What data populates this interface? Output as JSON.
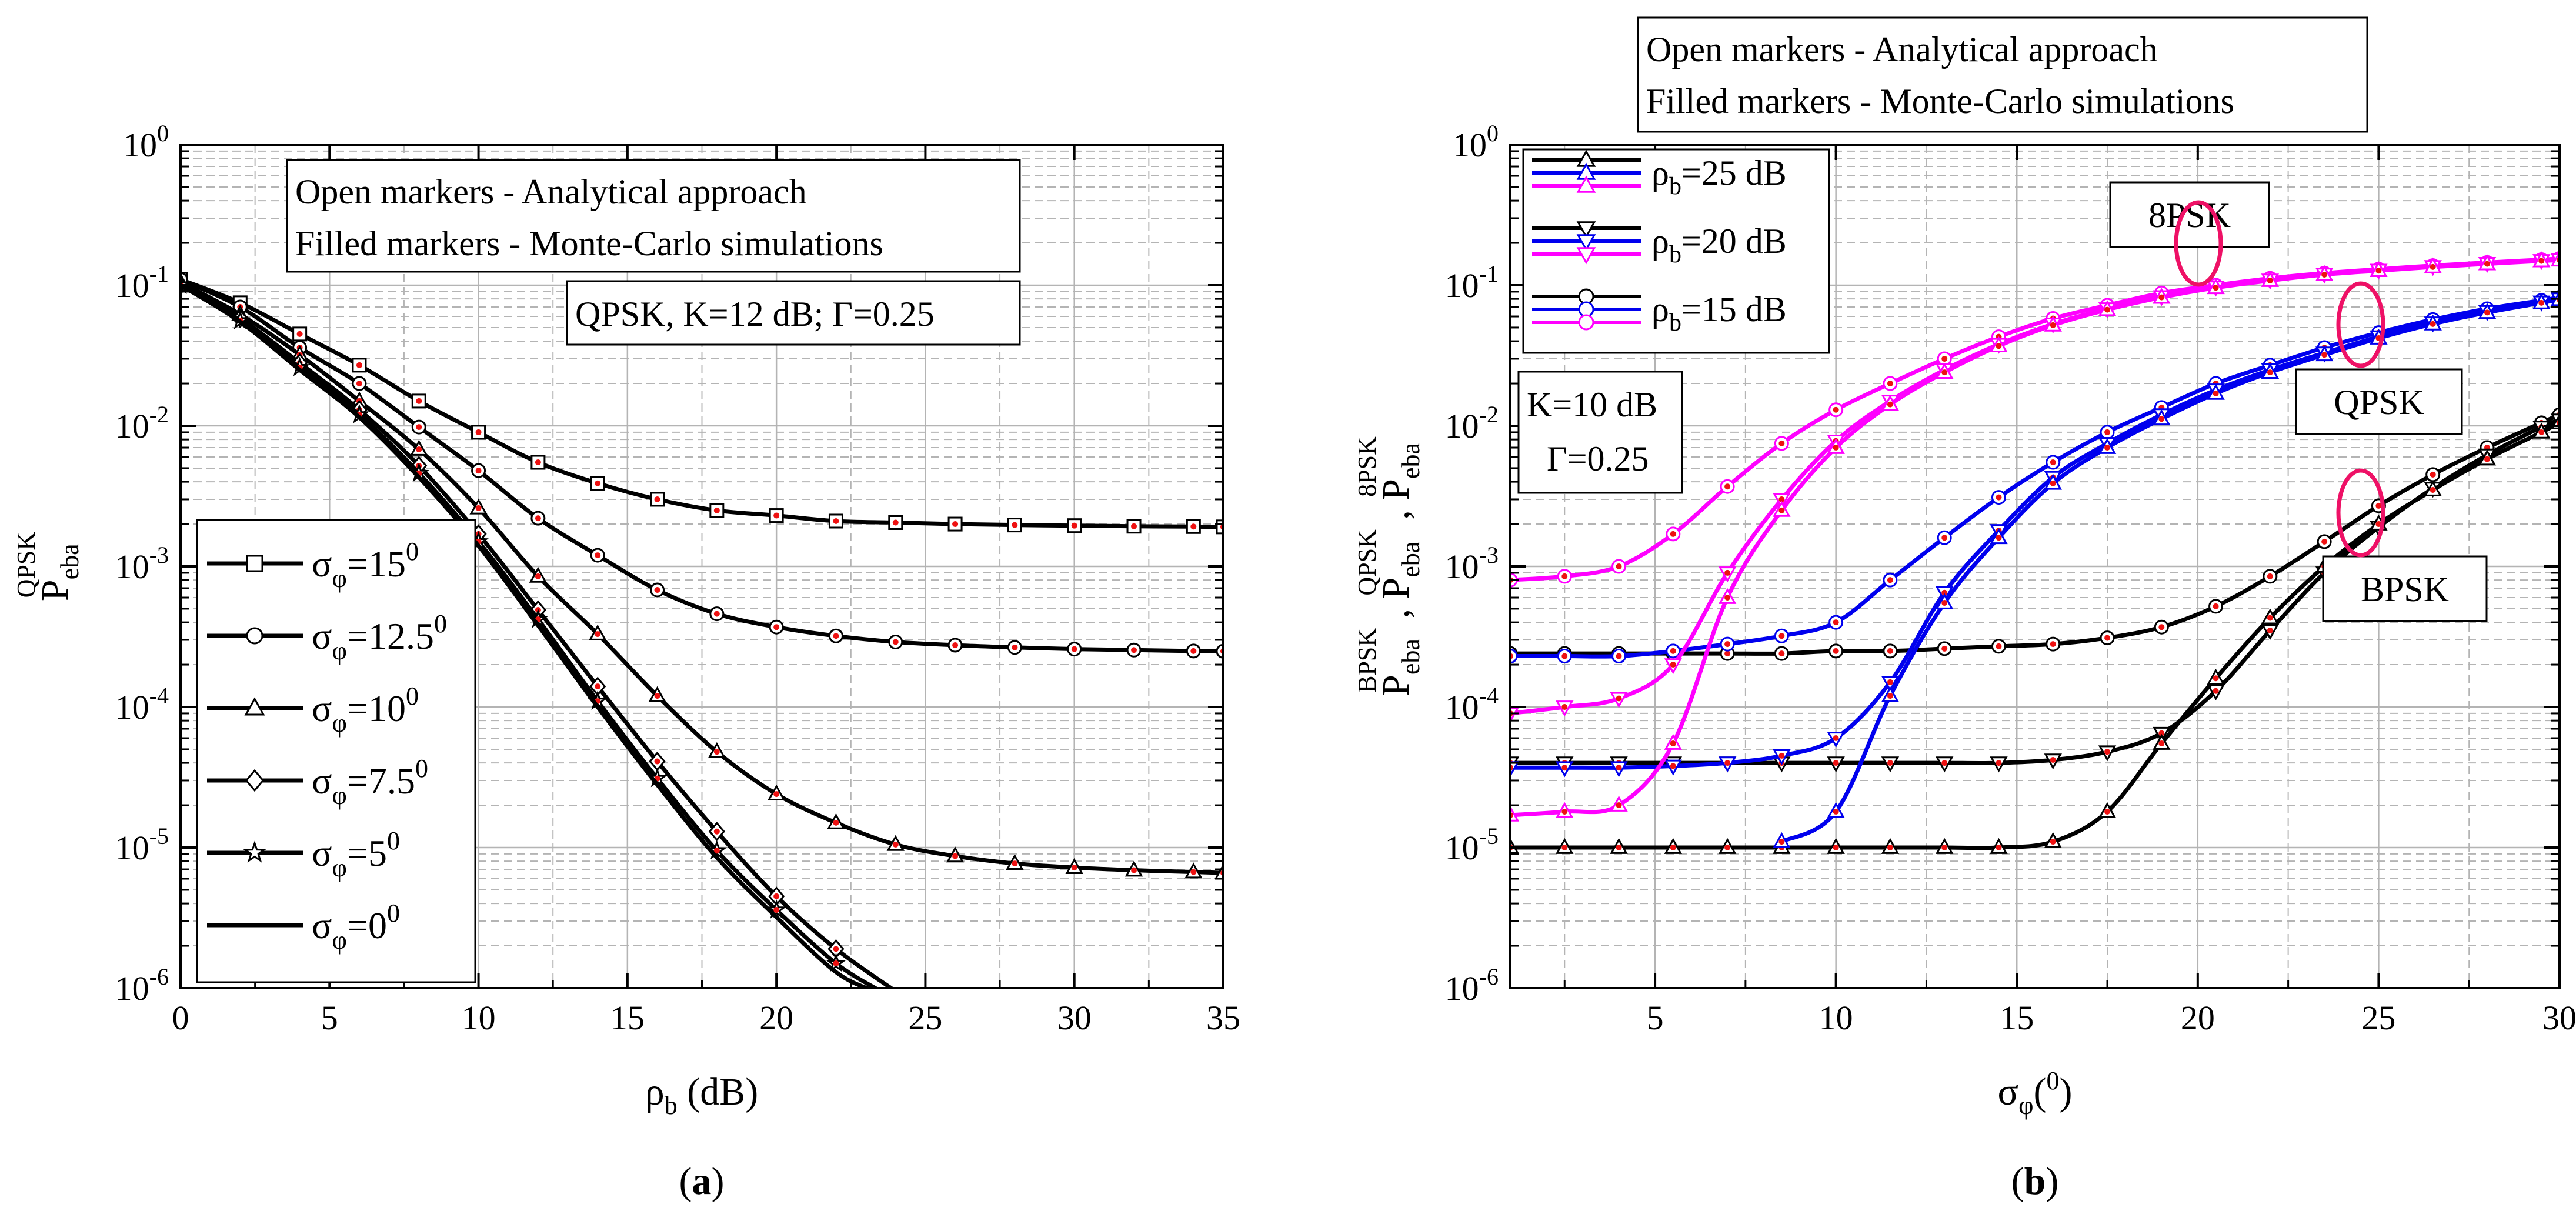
{
  "colors": {
    "black": "#000000",
    "blue": "#0000ee",
    "magenta": "#ff00ff",
    "red_fill": "#ee1111",
    "grid": "#b4b4b4"
  },
  "panel_a": {
    "caption": "a",
    "notes": [
      "Open markers - Analytical approach",
      "Filled markers - Monte-Carlo simulations"
    ],
    "params": "QPSK, K=12 dB; Γ=0.25"
  },
  "panel_b": {
    "caption": "b",
    "notes": [
      "Open markers - Analytical approach",
      "Filled markers - Monte-Carlo simulations"
    ],
    "params": [
      "K=10 dB",
      "Γ=0.25"
    ],
    "group_labels": [
      "8PSK",
      "QPSK",
      "BPSK"
    ]
  },
  "chart_data": [
    {
      "type": "line",
      "panel": "a",
      "xlabel": "ρb (dB)",
      "ylabel": "Peba QPSK",
      "xlim": [
        0,
        35
      ],
      "ylim": [
        1e-06,
        1
      ],
      "yscale": "log",
      "xticks": [
        0,
        5,
        10,
        15,
        20,
        25,
        30,
        35
      ],
      "yticks": [
        "10^0",
        "10^-1",
        "10^-2",
        "10^-3",
        "10^-4",
        "10^-5",
        "10^-6"
      ],
      "grid": true,
      "series": [
        {
          "name": "σφ=15⁰",
          "legend": [
            "σ",
            "φ",
            "=15",
            "0"
          ],
          "marker": "square",
          "color": "#000000",
          "x": [
            0,
            2,
            4,
            6,
            8,
            10,
            12,
            14,
            16,
            18,
            20,
            22,
            24,
            26,
            28,
            30,
            32,
            34,
            35
          ],
          "y": [
            0.11,
            0.075,
            0.045,
            0.027,
            0.015,
            0.009,
            0.0055,
            0.0039,
            0.003,
            0.0025,
            0.0023,
            0.0021,
            0.00205,
            0.002,
            0.00197,
            0.00195,
            0.00193,
            0.00192,
            0.00191
          ]
        },
        {
          "name": "σφ=12.5⁰",
          "legend": [
            "σ",
            "φ",
            "=12.5",
            "0"
          ],
          "marker": "circle",
          "color": "#000000",
          "x": [
            0,
            2,
            4,
            6,
            8,
            10,
            12,
            14,
            16,
            18,
            20,
            22,
            24,
            26,
            28,
            30,
            32,
            34,
            35
          ],
          "y": [
            0.11,
            0.07,
            0.036,
            0.02,
            0.0098,
            0.0048,
            0.0022,
            0.0012,
            0.00068,
            0.00046,
            0.00037,
            0.00032,
            0.00029,
            0.000275,
            0.000265,
            0.000258,
            0.000254,
            0.00025,
            0.000249
          ]
        },
        {
          "name": "σφ=10⁰",
          "legend": [
            "σ",
            "φ",
            "=10",
            "0"
          ],
          "marker": "triangle",
          "color": "#000000",
          "x": [
            0,
            2,
            4,
            6,
            8,
            10,
            12,
            14,
            16,
            18,
            20,
            22,
            24,
            26,
            28,
            30,
            32,
            34,
            35
          ],
          "y": [
            0.105,
            0.062,
            0.032,
            0.015,
            0.0068,
            0.0026,
            0.00085,
            0.00033,
            0.00012,
            4.8e-05,
            2.4e-05,
            1.5e-05,
            1.05e-05,
            8.7e-06,
            7.7e-06,
            7.2e-06,
            6.9e-06,
            6.7e-06,
            6.6e-06
          ]
        },
        {
          "name": "σφ=7.5⁰",
          "legend": [
            "σ",
            "φ",
            "=7.5",
            "0"
          ],
          "marker": "diamond",
          "color": "#000000",
          "x": [
            0,
            2,
            4,
            6,
            8,
            10,
            12,
            14,
            16,
            18,
            20,
            22,
            24
          ],
          "y": [
            0.1,
            0.058,
            0.028,
            0.013,
            0.0052,
            0.0017,
            0.00049,
            0.00014,
            4.1e-05,
            1.3e-05,
            4.5e-06,
            1.9e-06,
            9.5e-07
          ]
        },
        {
          "name": "σφ=5⁰",
          "legend": [
            "σ",
            "φ",
            "=5",
            "0"
          ],
          "marker": "star",
          "color": "#000000",
          "x": [
            0,
            2,
            4,
            6,
            8,
            10,
            12,
            14,
            16,
            18,
            20,
            22,
            23.5
          ],
          "y": [
            0.1,
            0.056,
            0.026,
            0.012,
            0.0046,
            0.0015,
            0.00042,
            0.00011,
            3.1e-05,
            9.5e-06,
            3.6e-06,
            1.5e-06,
            9.5e-07
          ]
        },
        {
          "name": "σφ=0⁰",
          "legend": [
            "σ",
            "φ",
            "=0",
            "0"
          ],
          "marker": "none",
          "color": "#000000",
          "x": [
            0,
            2,
            4,
            6,
            8,
            10,
            12,
            14,
            16,
            18,
            20,
            22,
            23.3
          ],
          "y": [
            0.1,
            0.055,
            0.025,
            0.0115,
            0.0043,
            0.0014,
            0.00038,
            0.0001,
            2.8e-05,
            8.5e-06,
            3.2e-06,
            1.3e-06,
            9.5e-07
          ]
        }
      ]
    },
    {
      "type": "line",
      "panel": "b",
      "xlabel": "σφ(⁰)",
      "ylabel": "Peba BPSK, Peba QPSK, Peba 8PSK",
      "xlim": [
        1,
        30
      ],
      "ylim": [
        1e-06,
        1
      ],
      "yscale": "log",
      "xticks": [
        5,
        10,
        15,
        20,
        25,
        30
      ],
      "yticks": [
        "10^0",
        "10^-1",
        "10^-2",
        "10^-3",
        "10^-4",
        "10^-5",
        "10^-6"
      ],
      "grid": true,
      "legend": [
        {
          "label": "ρb=25 dB",
          "sym": "ρ",
          "sub": "b",
          "rest": "=25 dB",
          "marker": "triangle"
        },
        {
          "label": "ρb=20 dB",
          "sym": "ρ",
          "sub": "b",
          "rest": "=20 dB",
          "marker": "triangle-down"
        },
        {
          "label": "ρb=15 dB",
          "sym": "ρ",
          "sub": "b",
          "rest": "=15 dB",
          "marker": "circle"
        }
      ],
      "series": [
        {
          "name": "BPSK ρb=15 dB",
          "color": "#000000",
          "marker": "circle",
          "x": [
            1,
            2.5,
            4,
            5.5,
            7,
            8.5,
            10,
            11.5,
            13,
            14.5,
            16,
            17.5,
            19,
            20.5,
            22,
            23.5,
            25,
            26.5,
            28,
            29.5,
            30
          ],
          "y": [
            0.00024,
            0.00024,
            0.00024,
            0.00024,
            0.00024,
            0.00024,
            0.00025,
            0.00025,
            0.00026,
            0.00027,
            0.00028,
            0.00031,
            0.00037,
            0.00052,
            0.00085,
            0.0015,
            0.0027,
            0.0045,
            0.007,
            0.0105,
            0.012
          ]
        },
        {
          "name": "BPSK ρb=20 dB",
          "color": "#000000",
          "marker": "triangle-down",
          "x": [
            1,
            2.5,
            4,
            5.5,
            7,
            8.5,
            10,
            11.5,
            13,
            14.5,
            16,
            17.5,
            19,
            20.5,
            22,
            23.5,
            25,
            26.5,
            28,
            29.5,
            30
          ],
          "y": [
            4e-05,
            4e-05,
            4e-05,
            4e-05,
            4e-05,
            4e-05,
            4e-05,
            4e-05,
            4e-05,
            4e-05,
            4.2e-05,
            4.8e-05,
            6.5e-05,
            0.00013,
            0.00035,
            0.0009,
            0.0019,
            0.0036,
            0.0062,
            0.0098,
            0.011
          ]
        },
        {
          "name": "BPSK ρb=25 dB",
          "color": "#000000",
          "marker": "triangle",
          "x": [
            1,
            2.5,
            4,
            5.5,
            7,
            8.5,
            10,
            11.5,
            13,
            14.5,
            16,
            17.5,
            19,
            20.5,
            22,
            23.5,
            25,
            26.5,
            28,
            29.5,
            30
          ],
          "y": [
            1e-05,
            1e-05,
            1e-05,
            1e-05,
            1e-05,
            1e-05,
            1e-05,
            1e-05,
            1e-05,
            1e-05,
            1.1e-05,
            1.8e-05,
            5.5e-05,
            0.00016,
            0.00043,
            0.001,
            0.002,
            0.0035,
            0.0058,
            0.009,
            0.0105
          ]
        },
        {
          "name": "QPSK ρb=15 dB",
          "color": "#0000ee",
          "marker": "circle",
          "x": [
            1,
            2.5,
            4,
            5.5,
            7,
            8.5,
            10,
            11.5,
            13,
            14.5,
            16,
            17.5,
            19,
            20.5,
            22,
            23.5,
            25,
            26.5,
            28,
            29.5,
            30
          ],
          "y": [
            0.00023,
            0.00023,
            0.00023,
            0.00025,
            0.00028,
            0.00032,
            0.0004,
            0.0008,
            0.0016,
            0.0031,
            0.0055,
            0.009,
            0.0135,
            0.02,
            0.027,
            0.036,
            0.046,
            0.057,
            0.068,
            0.078,
            0.082
          ]
        },
        {
          "name": "QPSK ρb=20 dB",
          "color": "#0000ee",
          "marker": "triangle-down",
          "x": [
            1,
            2.5,
            4,
            5.5,
            7,
            8.5,
            10,
            11.5,
            13,
            14.5,
            16,
            17.5,
            19,
            20.5,
            22,
            23.5,
            25,
            26.5,
            28,
            29.5,
            30
          ],
          "y": [
            3.7e-05,
            3.7e-05,
            3.7e-05,
            3.8e-05,
            4e-05,
            4.5e-05,
            6e-05,
            0.00015,
            0.00065,
            0.0018,
            0.0043,
            0.0075,
            0.012,
            0.018,
            0.025,
            0.033,
            0.043,
            0.054,
            0.065,
            0.076,
            0.08
          ]
        },
        {
          "name": "QPSK ρb=25 dB",
          "color": "#0000ee",
          "marker": "triangle",
          "x": [
            8.5,
            10,
            11.5,
            13,
            14.5,
            16,
            17.5,
            19,
            20.5,
            22,
            23.5,
            25,
            26.5,
            28,
            29.5,
            30
          ],
          "y": [
            1.1e-05,
            1.8e-05,
            0.00012,
            0.00055,
            0.0016,
            0.0039,
            0.007,
            0.0112,
            0.017,
            0.024,
            0.032,
            0.042,
            0.053,
            0.064,
            0.075,
            0.079
          ]
        },
        {
          "name": "8PSK ρb=15 dB",
          "color": "#ff00ff",
          "marker": "circle",
          "x": [
            1,
            2.5,
            4,
            5.5,
            7,
            8.5,
            10,
            11.5,
            13,
            14.5,
            16,
            17.5,
            19,
            20.5,
            22,
            23.5,
            25,
            26.5,
            28,
            29.5,
            30
          ],
          "y": [
            0.0008,
            0.00085,
            0.001,
            0.0017,
            0.0037,
            0.0075,
            0.013,
            0.02,
            0.03,
            0.043,
            0.058,
            0.072,
            0.088,
            0.1,
            0.112,
            0.122,
            0.13,
            0.138,
            0.145,
            0.152,
            0.155
          ]
        },
        {
          "name": "8PSK ρb=20 dB",
          "color": "#ff00ff",
          "marker": "triangle-down",
          "x": [
            1,
            2.5,
            4,
            5.5,
            7,
            8.5,
            10,
            11.5,
            13,
            14.5,
            16,
            17.5,
            19,
            20.5,
            22,
            23.5,
            25,
            26.5,
            28,
            29.5,
            30
          ],
          "y": [
            9e-05,
            0.0001,
            0.000115,
            0.0002,
            0.0009,
            0.003,
            0.0078,
            0.015,
            0.025,
            0.038,
            0.053,
            0.068,
            0.083,
            0.097,
            0.109,
            0.12,
            0.128,
            0.136,
            0.143,
            0.15,
            0.152
          ]
        },
        {
          "name": "8PSK ρb=25 dB",
          "color": "#ff00ff",
          "marker": "triangle",
          "x": [
            1,
            2.5,
            4,
            5.5,
            7,
            8.5,
            10,
            11.5,
            13,
            14.5,
            16,
            17.5,
            19,
            20.5,
            22,
            23.5,
            25,
            26.5,
            28,
            29.5,
            30
          ],
          "y": [
            1.7e-05,
            1.8e-05,
            2e-05,
            5.5e-05,
            0.0006,
            0.0025,
            0.007,
            0.0142,
            0.024,
            0.037,
            0.052,
            0.067,
            0.082,
            0.096,
            0.108,
            0.119,
            0.127,
            0.135,
            0.142,
            0.149,
            0.151
          ]
        }
      ]
    }
  ]
}
